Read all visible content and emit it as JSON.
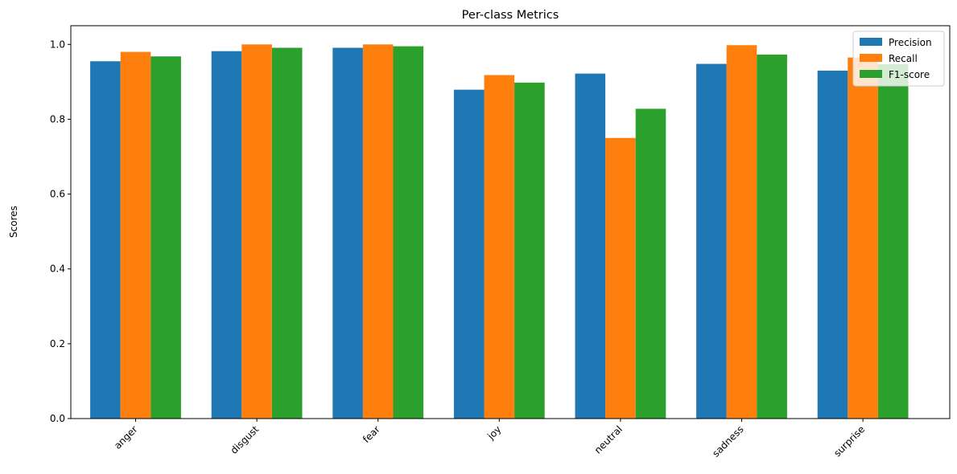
{
  "chart_data": {
    "type": "bar",
    "title": "Per-class Metrics",
    "xlabel": "",
    "ylabel": "Scores",
    "categories": [
      "anger",
      "disgust",
      "fear",
      "joy",
      "neutral",
      "sadness",
      "surprise"
    ],
    "series": [
      {
        "name": "Precision",
        "color": "#1f77b4",
        "values": [
          0.955,
          0.982,
          0.991,
          0.879,
          0.922,
          0.948,
          0.93
        ]
      },
      {
        "name": "Recall",
        "color": "#ff7f0e",
        "values": [
          0.98,
          1.0,
          1.0,
          0.918,
          0.75,
          0.998,
          0.965
        ]
      },
      {
        "name": "F1-score",
        "color": "#2ca02c",
        "values": [
          0.968,
          0.991,
          0.995,
          0.898,
          0.828,
          0.973,
          0.947
        ]
      }
    ],
    "ylim": [
      0,
      1.05
    ],
    "yticks": [
      "0.0",
      "0.2",
      "0.4",
      "0.6",
      "0.8",
      "1.0"
    ],
    "grid": false,
    "legend": "top-right"
  }
}
